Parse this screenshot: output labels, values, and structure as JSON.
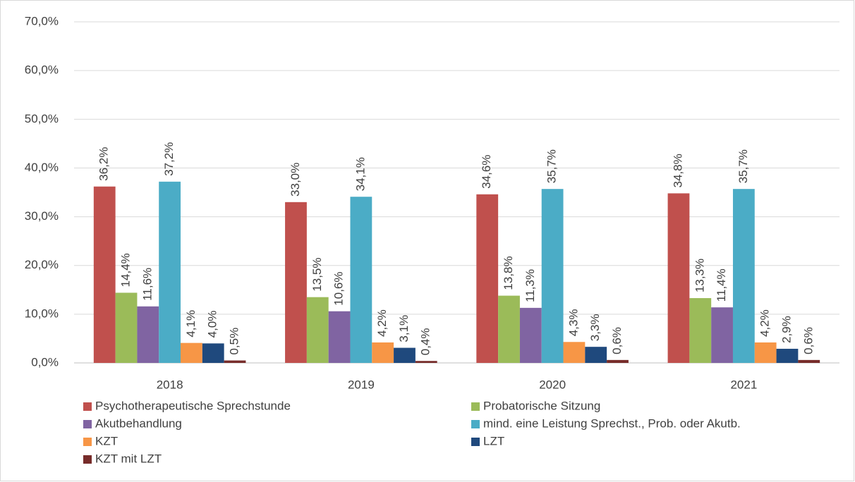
{
  "chart_data": {
    "type": "bar",
    "categories": [
      "2018",
      "2019",
      "2020",
      "2021"
    ],
    "series": [
      {
        "name": "Psychotherapeutische Sprechstunde",
        "color": "#c0504d",
        "values": [
          36.2,
          33.0,
          34.6,
          34.8
        ],
        "value_labels": [
          "36,2%",
          "33,0%",
          "34,6%",
          "34,8%"
        ]
      },
      {
        "name": "Probatorische Sitzung",
        "color": "#9bbb59",
        "values": [
          14.4,
          13.5,
          13.8,
          13.3
        ],
        "value_labels": [
          "14,4%",
          "13,5%",
          "13,8%",
          "13,3%"
        ]
      },
      {
        "name": "Akutbehandlung",
        "color": "#8064a2",
        "values": [
          11.6,
          10.6,
          11.3,
          11.4
        ],
        "value_labels": [
          "11,6%",
          "10,6%",
          "11,3%",
          "11,4%"
        ]
      },
      {
        "name": "mind. eine Leistung Sprechst., Prob. oder Akutb.",
        "color": "#4bacc6",
        "values": [
          37.2,
          34.1,
          35.7,
          35.7
        ],
        "value_labels": [
          "37,2%",
          "34,1%",
          "35,7%",
          "35,7%"
        ]
      },
      {
        "name": "KZT",
        "color": "#f79646",
        "values": [
          4.1,
          4.2,
          4.3,
          4.2
        ],
        "value_labels": [
          "4,1%",
          "4,2%",
          "4,3%",
          "4,2%"
        ]
      },
      {
        "name": "LZT",
        "color": "#1f497d",
        "values": [
          4.0,
          3.1,
          3.3,
          2.9
        ],
        "value_labels": [
          "4,0%",
          "3,1%",
          "3,3%",
          "2,9%"
        ]
      },
      {
        "name": "KZT mit LZT",
        "color": "#772c2a",
        "values": [
          0.5,
          0.4,
          0.6,
          0.6
        ],
        "value_labels": [
          "0,5%",
          "0,4%",
          "0,6%",
          "0,6%"
        ]
      }
    ],
    "ylim": [
      0,
      70
    ],
    "yticks": [
      {
        "value": 0,
        "label": "0,0%"
      },
      {
        "value": 10,
        "label": "10,0%"
      },
      {
        "value": 20,
        "label": "20,0%"
      },
      {
        "value": 30,
        "label": "30,0%"
      },
      {
        "value": 40,
        "label": "40,0%"
      },
      {
        "value": 50,
        "label": "50,0%"
      },
      {
        "value": 60,
        "label": "60,0%"
      },
      {
        "value": 70,
        "label": "70,0%"
      }
    ],
    "grid": true,
    "legend": "bottom"
  }
}
